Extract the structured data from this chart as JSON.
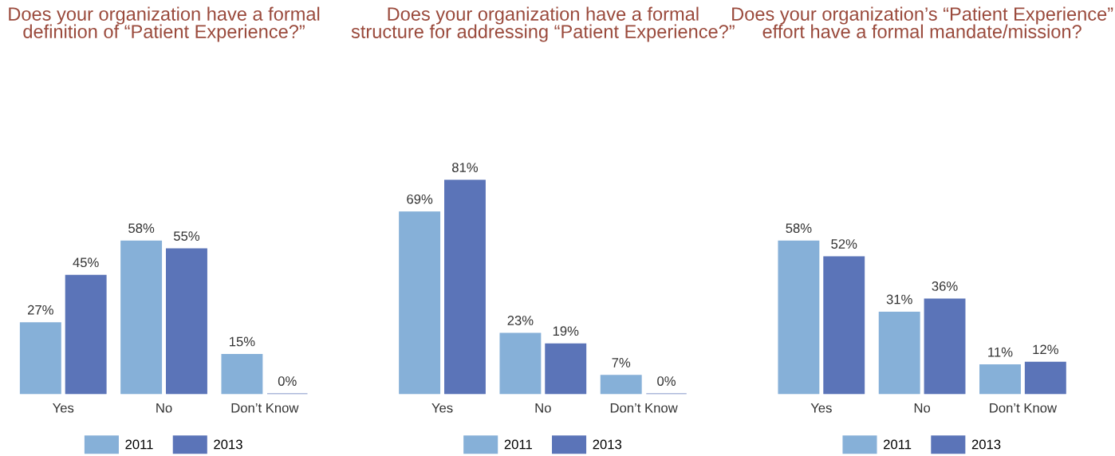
{
  "chart_data": [
    {
      "type": "bar",
      "title": "Does your organization have a formal definition of “Patient Experience?”",
      "categories": [
        "Yes",
        "No",
        "Don’t Know"
      ],
      "series": [
        {
          "name": "2011",
          "color": "#86b0d8",
          "values": [
            27,
            58,
            15
          ],
          "value_labels": [
            "27%",
            "58%",
            "15%"
          ]
        },
        {
          "name": "2013",
          "color": "#5b74b8",
          "values": [
            45,
            55,
            0
          ],
          "value_labels": [
            "45%",
            "55%",
            "0%"
          ]
        }
      ],
      "legend": "bottom",
      "grid": false
    },
    {
      "type": "bar",
      "title": "Does your organization have a formal structure for addressing “Patient Experience?”",
      "categories": [
        "Yes",
        "No",
        "Don’t Know"
      ],
      "series": [
        {
          "name": "2011",
          "color": "#86b0d8",
          "values": [
            69,
            23,
            7
          ],
          "value_labels": [
            "69%",
            "23%",
            "7%"
          ]
        },
        {
          "name": "2013",
          "color": "#5b74b8",
          "values": [
            81,
            19,
            0
          ],
          "value_labels": [
            "81%",
            "19%",
            "0%"
          ]
        }
      ],
      "legend": "bottom",
      "grid": false
    },
    {
      "type": "bar",
      "title": "Does your organization’s “Patient Experience” effort have a formal mandate/mission?",
      "categories": [
        "Yes",
        "No",
        "Don’t Know"
      ],
      "series": [
        {
          "name": "2011",
          "color": "#86b0d8",
          "values": [
            58,
            31,
            11
          ],
          "value_labels": [
            "58%",
            "31%",
            "11%"
          ]
        },
        {
          "name": "2013",
          "color": "#5b74b8",
          "values": [
            52,
            36,
            12
          ],
          "value_labels": [
            "52%",
            "36%",
            "12%"
          ]
        }
      ],
      "legend": "bottom",
      "grid": false
    }
  ]
}
